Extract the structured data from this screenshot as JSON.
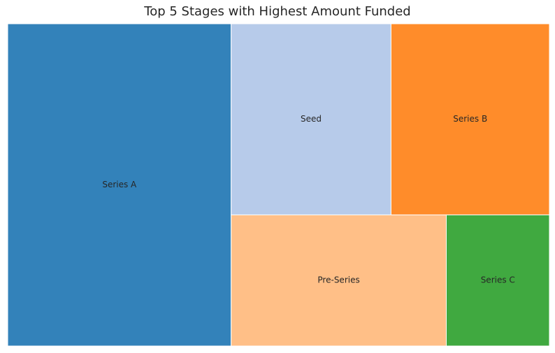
{
  "chart_data": {
    "type": "treemap",
    "title": "Top 5 Stages with Highest Amount Funded",
    "categories": [
      "Series A",
      "Seed",
      "Series B",
      "Pre-Series",
      "Series C"
    ],
    "values": [
      245,
      104,
      103,
      96,
      46
    ],
    "colors": {
      "Series A": "#3382BA",
      "Seed": "#B7CBEA",
      "Series B": "#FF8C2A",
      "Pre-Series": "#FFBF87",
      "Series C": "#40A940"
    }
  }
}
